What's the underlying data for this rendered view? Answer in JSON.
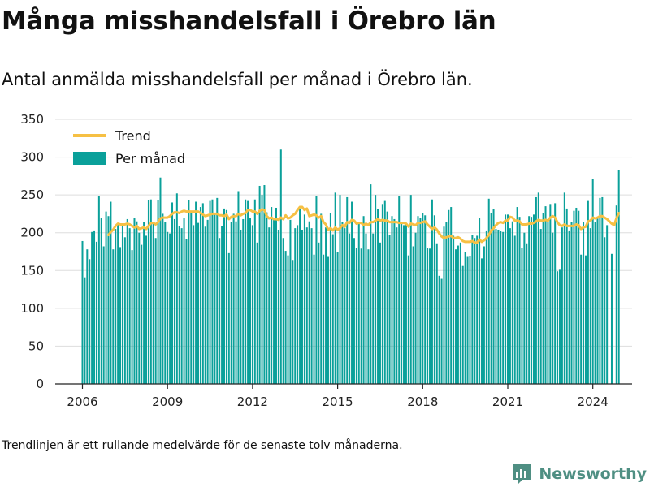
{
  "header": {
    "title": "Många misshandelsfall i Örebro län",
    "subtitle": "Antal anmälda misshandelsfall per månad i Örebro län."
  },
  "footer": {
    "note": "Trendlinjen är ett rullande medelvärde för de senaste tolv månaderna.",
    "brand": "Newsworthy"
  },
  "colors": {
    "bars": "#0aa09a",
    "trend": "#f6c044",
    "axis": "#222222",
    "grid": "#dddddd",
    "brand": "#4f8f83"
  },
  "chart_data": {
    "type": "bar",
    "x_type": "monthly",
    "start": "2006-01",
    "end": "2024-06",
    "ylim": [
      0,
      350
    ],
    "yticks": [
      0,
      50,
      100,
      150,
      200,
      250,
      300,
      350
    ],
    "xticks": [
      "2006",
      "2009",
      "2012",
      "2015",
      "2018",
      "2021",
      "2024"
    ],
    "legend": {
      "position": "top-left",
      "entries": [
        "Trend",
        "Per månad"
      ]
    },
    "series": [
      {
        "name": "Per månad",
        "kind": "bar",
        "values": [
          189,
          141,
          178,
          165,
          201,
          203,
          188,
          248,
          219,
          182,
          228,
          222,
          241,
          178,
          205,
          211,
          181,
          211,
          194,
          218,
          206,
          177,
          219,
          215,
          200,
          184,
          214,
          196,
          243,
          244,
          214,
          193,
          243,
          273,
          225,
          214,
          201,
          199,
          240,
          218,
          252,
          209,
          206,
          219,
          192,
          243,
          228,
          210,
          241,
          213,
          234,
          239,
          208,
          217,
          242,
          244,
          226,
          246,
          193,
          209,
          232,
          230,
          173,
          214,
          225,
          215,
          255,
          204,
          218,
          244,
          242,
          219,
          210,
          244,
          187,
          262,
          250,
          263,
          227,
          207,
          234,
          219,
          233,
          204,
          310,
          193,
          176,
          170,
          217,
          164,
          206,
          210,
          232,
          204,
          224,
          207,
          215,
          206,
          171,
          249,
          187,
          225,
          171,
          207,
          168,
          226,
          198,
          253,
          175,
          250,
          214,
          206,
          247,
          199,
          241,
          193,
          180,
          213,
          179,
          222,
          199,
          178,
          264,
          199,
          250,
          231,
          187,
          238,
          242,
          228,
          197,
          222,
          218,
          207,
          248,
          213,
          210,
          211,
          170,
          250,
          182,
          200,
          222,
          220,
          226,
          223,
          180,
          179,
          244,
          223,
          186,
          143,
          139,
          208,
          214,
          230,
          234,
          196,
          178,
          183,
          187,
          156,
          175,
          168,
          169,
          197,
          193,
          196,
          220,
          166,
          182,
          203,
          245,
          226,
          231,
          205,
          204,
          202,
          201,
          224,
          224,
          206,
          215,
          196,
          234,
          221,
          180,
          200,
          186,
          222,
          221,
          224,
          247,
          253,
          205,
          226,
          235,
          218,
          238,
          200,
          239,
          149,
          151,
          207,
          253,
          232,
          203,
          214,
          229,
          233,
          229,
          171,
          214,
          170,
          242,
          206,
          271,
          214,
          219,
          246,
          247,
          194,
          210,
          0,
          172,
          0,
          236,
          283
        ]
      },
      {
        "name": "Trend",
        "kind": "line",
        "values": [
          null,
          null,
          null,
          null,
          null,
          null,
          null,
          null,
          null,
          null,
          null,
          197,
          201,
          204,
          209,
          212,
          211,
          211,
          211,
          212,
          211,
          209,
          207,
          209,
          205,
          206,
          207,
          205,
          209,
          213,
          213,
          211,
          214,
          219,
          220,
          220,
          220,
          222,
          225,
          227,
          227,
          226,
          228,
          229,
          228,
          228,
          228,
          228,
          228,
          228,
          226,
          224,
          222,
          223,
          224,
          225,
          225,
          225,
          223,
          223,
          222,
          224,
          218,
          221,
          222,
          222,
          225,
          223,
          225,
          226,
          230,
          230,
          228,
          228,
          225,
          229,
          231,
          230,
          222,
          219,
          220,
          218,
          218,
          217,
          220,
          218,
          223,
          219,
          220,
          223,
          225,
          230,
          234,
          234,
          230,
          232,
          222,
          223,
          224,
          223,
          220,
          222,
          214,
          211,
          204,
          206,
          203,
          207,
          204,
          206,
          210,
          208,
          214,
          213,
          217,
          216,
          212,
          213,
          213,
          210,
          212,
          210,
          214,
          214,
          216,
          218,
          216,
          217,
          216,
          216,
          214,
          214,
          214,
          214,
          213,
          213,
          213,
          212,
          208,
          212,
          211,
          210,
          213,
          213,
          214,
          215,
          211,
          208,
          205,
          207,
          204,
          199,
          195,
          193,
          194,
          195,
          196,
          193,
          193,
          194,
          192,
          189,
          188,
          188,
          188,
          189,
          187,
          187,
          191,
          188,
          190,
          193,
          197,
          203,
          206,
          210,
          213,
          214,
          213,
          216,
          216,
          221,
          220,
          216,
          216,
          215,
          211,
          211,
          211,
          212,
          212,
          213,
          215,
          217,
          216,
          216,
          217,
          216,
          220,
          222,
          220,
          214,
          210,
          209,
          211,
          209,
          209,
          209,
          209,
          211,
          210,
          205,
          207,
          208,
          215,
          216,
          220,
          219,
          220,
          222,
          222,
          220,
          218,
          215,
          212,
          210,
          219,
          226
        ]
      }
    ]
  }
}
